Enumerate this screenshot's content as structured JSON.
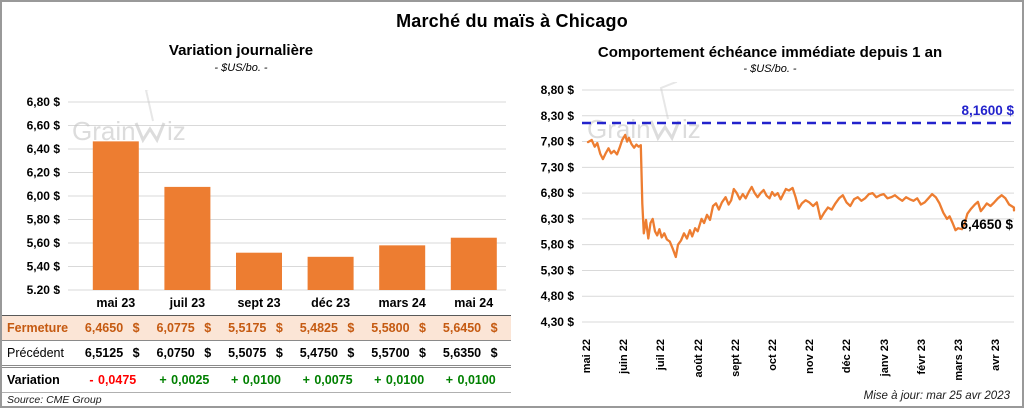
{
  "page": {
    "title": "Marché du maïs à Chicago",
    "source": "Source: CME Group",
    "updated": "Mise à jour: mar 25 avr 2023",
    "watermark": "GrainWiz"
  },
  "colors": {
    "grid": "#D9D9D9",
    "positive": "#008000",
    "negative": "#FF0000",
    "watermark": "#C6C6C6",
    "table_highlight_bg": "#FBE5D6",
    "table_highlight_text": "#C55A11"
  },
  "chart_data": [
    {
      "type": "bar",
      "title": "Variation  journalière",
      "subtitle": "- $US/bo. -",
      "categories": [
        "mai 23",
        "juil 23",
        "sept 23",
        "déc 23",
        "mars 24",
        "mai 24"
      ],
      "values": [
        6.465,
        6.0775,
        5.5175,
        5.4825,
        5.58,
        5.645
      ],
      "ylim": [
        5.2,
        6.8
      ],
      "ytick_step": 0.2,
      "ytick_labels": [
        "6,80 $",
        "6,60 $",
        "6,40 $",
        "6,20 $",
        "6,00 $",
        "5,80 $",
        "5,60 $",
        "5,40 $",
        "5,20 $"
      ],
      "bar_color": "#ED7D31",
      "grid": true,
      "legend": "none"
    },
    {
      "type": "line",
      "title": "Comportement  échéance  immédiate  depuis 1 an",
      "subtitle": "- $US/bo. -",
      "x_ticks": [
        "mai 22",
        "juin 22",
        "juil 22",
        "août 22",
        "sept 22",
        "oct 22",
        "nov 22",
        "déc 22",
        "janv 23",
        "févr 23",
        "mars 23",
        "avr 23"
      ],
      "ylim": [
        4.3,
        8.8
      ],
      "ytick_step": 0.5,
      "ytick_labels": [
        "8,80 $",
        "8,30 $",
        "7,80 $",
        "7,30 $",
        "6,80 $",
        "6,30 $",
        "5,80 $",
        "5,30 $",
        "4,80 $",
        "4,30 $"
      ],
      "grid": true,
      "legend": "none",
      "reference_line": {
        "value": 8.16,
        "label": "8,1600 $",
        "color": "#2323CC",
        "style": "dashed"
      },
      "end_label": {
        "value": 6.465,
        "label": "6,4650 $"
      },
      "series": [
        {
          "color": "#ED7D31",
          "points": [
            [
              0,
              7.79
            ],
            [
              0.1,
              7.83
            ],
            [
              0.18,
              7.7
            ],
            [
              0.25,
              7.77
            ],
            [
              0.33,
              7.56
            ],
            [
              0.4,
              7.46
            ],
            [
              0.48,
              7.58
            ],
            [
              0.55,
              7.67
            ],
            [
              0.62,
              7.57
            ],
            [
              0.7,
              7.62
            ],
            [
              0.78,
              7.55
            ],
            [
              0.85,
              7.68
            ],
            [
              0.92,
              7.83
            ],
            [
              1,
              7.93
            ],
            [
              1.05,
              7.8
            ],
            [
              1.1,
              7.87
            ],
            [
              1.17,
              7.75
            ],
            [
              1.24,
              7.68
            ],
            [
              1.3,
              7.74
            ],
            [
              1.36,
              7.7
            ],
            [
              1.42,
              7.73
            ],
            [
              1.46,
              6.6
            ],
            [
              1.5,
              6.02
            ],
            [
              1.56,
              6.28
            ],
            [
              1.62,
              5.92
            ],
            [
              1.68,
              6.22
            ],
            [
              1.74,
              6.3
            ],
            [
              1.8,
              6.06
            ],
            [
              1.86,
              5.98
            ],
            [
              1.92,
              6.1
            ],
            [
              1.98,
              5.94
            ],
            [
              2.05,
              6.02
            ],
            [
              2.12,
              5.9
            ],
            [
              2.2,
              5.86
            ],
            [
              2.28,
              5.72
            ],
            [
              2.36,
              5.56
            ],
            [
              2.42,
              5.8
            ],
            [
              2.5,
              5.88
            ],
            [
              2.58,
              6.02
            ],
            [
              2.66,
              5.92
            ],
            [
              2.74,
              6.08
            ],
            [
              2.8,
              5.96
            ],
            [
              2.88,
              6.12
            ],
            [
              2.95,
              6.06
            ],
            [
              3.05,
              6.3
            ],
            [
              3.12,
              6.22
            ],
            [
              3.2,
              6.38
            ],
            [
              3.28,
              6.28
            ],
            [
              3.36,
              6.55
            ],
            [
              3.44,
              6.6
            ],
            [
              3.52,
              6.48
            ],
            [
              3.6,
              6.62
            ],
            [
              3.7,
              6.72
            ],
            [
              3.78,
              6.58
            ],
            [
              3.85,
              6.66
            ],
            [
              3.92,
              6.88
            ],
            [
              4,
              6.8
            ],
            [
              4.08,
              6.68
            ],
            [
              4.16,
              6.78
            ],
            [
              4.24,
              6.7
            ],
            [
              4.32,
              6.82
            ],
            [
              4.4,
              6.92
            ],
            [
              4.48,
              6.8
            ],
            [
              4.56,
              6.72
            ],
            [
              4.64,
              6.8
            ],
            [
              4.72,
              6.86
            ],
            [
              4.8,
              6.75
            ],
            [
              4.88,
              6.7
            ],
            [
              4.95,
              6.82
            ],
            [
              5.02,
              6.75
            ],
            [
              5.1,
              6.8
            ],
            [
              5.18,
              6.68
            ],
            [
              5.25,
              6.78
            ],
            [
              5.32,
              6.88
            ],
            [
              5.4,
              6.85
            ],
            [
              5.5,
              6.9
            ],
            [
              5.58,
              6.72
            ],
            [
              5.66,
              6.5
            ],
            [
              5.75,
              6.6
            ],
            [
              5.85,
              6.66
            ],
            [
              5.95,
              6.62
            ],
            [
              6.05,
              6.55
            ],
            [
              6.15,
              6.62
            ],
            [
              6.25,
              6.3
            ],
            [
              6.35,
              6.42
            ],
            [
              6.45,
              6.52
            ],
            [
              6.55,
              6.48
            ],
            [
              6.65,
              6.6
            ],
            [
              6.75,
              6.7
            ],
            [
              6.85,
              6.76
            ],
            [
              6.95,
              6.62
            ],
            [
              7.05,
              6.55
            ],
            [
              7.15,
              6.68
            ],
            [
              7.25,
              6.72
            ],
            [
              7.35,
              6.65
            ],
            [
              7.45,
              6.7
            ],
            [
              7.55,
              6.78
            ],
            [
              7.65,
              6.8
            ],
            [
              7.75,
              6.72
            ],
            [
              7.85,
              6.76
            ],
            [
              7.95,
              6.78
            ],
            [
              8.05,
              6.7
            ],
            [
              8.15,
              6.72
            ],
            [
              8.25,
              6.76
            ],
            [
              8.35,
              6.7
            ],
            [
              8.45,
              6.65
            ],
            [
              8.55,
              6.72
            ],
            [
              8.65,
              6.68
            ],
            [
              8.75,
              6.65
            ],
            [
              8.85,
              6.7
            ],
            [
              8.95,
              6.58
            ],
            [
              9.05,
              6.62
            ],
            [
              9.15,
              6.7
            ],
            [
              9.25,
              6.78
            ],
            [
              9.35,
              6.72
            ],
            [
              9.45,
              6.6
            ],
            [
              9.55,
              6.42
            ],
            [
              9.65,
              6.3
            ],
            [
              9.72,
              6.35
            ],
            [
              9.8,
              6.22
            ],
            [
              9.88,
              6.08
            ],
            [
              9.95,
              6.12
            ],
            [
              10.05,
              6.1
            ],
            [
              10.12,
              6.2
            ],
            [
              10.2,
              6.4
            ],
            [
              10.3,
              6.5
            ],
            [
              10.4,
              6.58
            ],
            [
              10.48,
              6.63
            ],
            [
              10.56,
              6.45
            ],
            [
              10.64,
              6.52
            ],
            [
              10.72,
              6.6
            ],
            [
              10.82,
              6.55
            ],
            [
              10.92,
              6.62
            ],
            [
              11.02,
              6.7
            ],
            [
              11.12,
              6.76
            ],
            [
              11.22,
              6.7
            ],
            [
              11.32,
              6.58
            ],
            [
              11.45,
              6.52
            ],
            [
              11.55,
              6.465
            ]
          ]
        }
      ]
    }
  ],
  "table": {
    "rows": [
      {
        "id": "fermeture",
        "label": "Fermeture",
        "values": [
          "6,4650 $",
          "6,0775 $",
          "5,5175 $",
          "5,4825 $",
          "5,5800 $",
          "5,6450 $"
        ]
      },
      {
        "id": "precedent",
        "label": "Précédent",
        "values": [
          "6,5125 $",
          "6,0750 $",
          "5,5075 $",
          "5,4750 $",
          "5,5700 $",
          "5,6350 $"
        ]
      },
      {
        "id": "variation",
        "label": "Variation",
        "values": [
          "- 0,0475",
          "+ 0,0025",
          "+ 0,0100",
          "+ 0,0075",
          "+ 0,0100",
          "+ 0,0100"
        ]
      }
    ]
  }
}
